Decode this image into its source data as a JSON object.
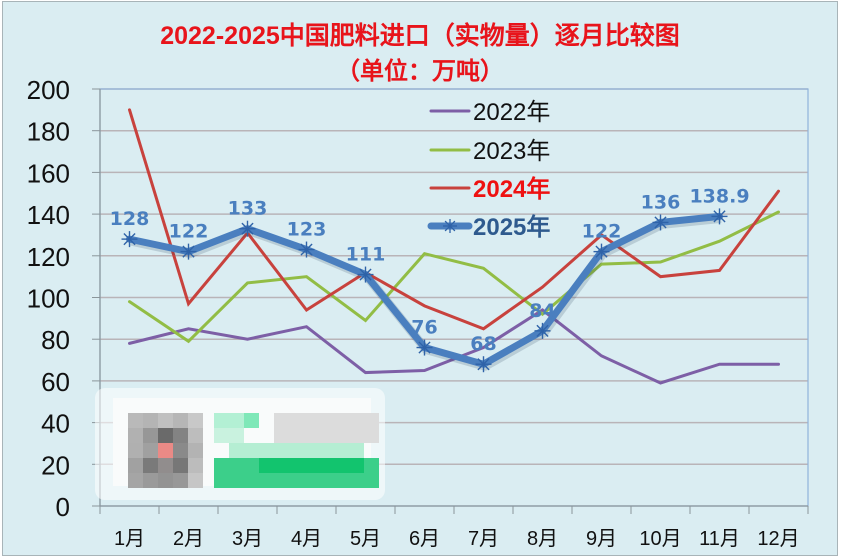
{
  "chart_data": {
    "type": "line",
    "title": "2022-2025中国肥料进口（实物量）逐月比较图",
    "subtitle": "（单位：万吨）",
    "xlabel": "",
    "ylabel": "",
    "categories": [
      "1月",
      "2月",
      "3月",
      "4月",
      "5月",
      "6月",
      "7月",
      "8月",
      "9月",
      "10月",
      "11月",
      "12月"
    ],
    "ylim": [
      0,
      200
    ],
    "yticks": [
      0,
      20,
      40,
      60,
      80,
      100,
      120,
      140,
      160,
      180,
      200
    ],
    "grid": true,
    "legend_position": "top-center-inside",
    "series": [
      {
        "name": "2022年",
        "color": "#7d5fa6",
        "values": [
          78,
          85,
          80,
          86,
          64,
          65,
          76,
          94,
          72,
          59,
          68,
          68
        ]
      },
      {
        "name": "2023年",
        "color": "#92bd45",
        "values": [
          98,
          79,
          107,
          110,
          89,
          121,
          114,
          92,
          116,
          117,
          127,
          141
        ]
      },
      {
        "name": "2024年",
        "color": "#c8423d",
        "values": [
          190,
          97,
          131,
          94,
          112,
          96,
          85,
          105,
          130,
          110,
          113,
          151
        ]
      },
      {
        "name": "2025年",
        "color": "#4a7fbf",
        "values": [
          128,
          122,
          133,
          123,
          111,
          76,
          68,
          84,
          122,
          136,
          138.9
        ],
        "data_labels": [
          "128",
          "122",
          "133",
          "123",
          "111",
          "76",
          "68",
          "84",
          "122",
          "136",
          "138.9"
        ],
        "marker": "asterisk"
      }
    ]
  },
  "legend": {
    "items": [
      {
        "label": "2022年",
        "text_color": "#111111",
        "bold": false
      },
      {
        "label": "2023年",
        "text_color": "#111111",
        "bold": false
      },
      {
        "label": "2024年",
        "text_color": "#ee1111",
        "bold": true
      },
      {
        "label": "2025年",
        "text_color": "#2e5a8e",
        "bold": true
      }
    ]
  },
  "colors": {
    "background": "#daedf2",
    "gridline": "#b9b4b8",
    "title": "#e8141b"
  }
}
